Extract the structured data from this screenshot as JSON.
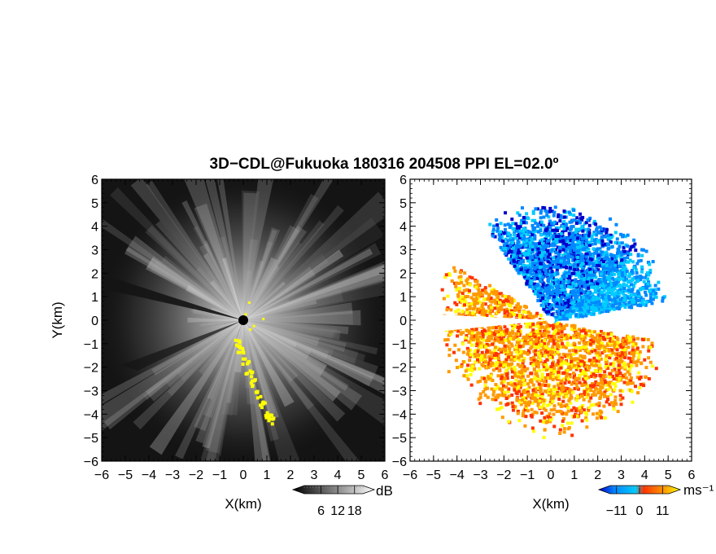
{
  "figure": {
    "title": "3D−CDL@Fukuoka 180316 204508 PPI EL=02.0º"
  },
  "chart_data": [
    {
      "type": "heatmap",
      "panel": "left",
      "description_quantity": "reflectivity-like power (dB)",
      "xlabel": "X(km)",
      "ylabel": "Y(km)",
      "xlim": [
        -6,
        6
      ],
      "ylim": [
        -6,
        6
      ],
      "xticks": [
        "−6",
        "−5",
        "−4",
        "−3",
        "−2",
        "−1",
        "0",
        "1",
        "2",
        "3",
        "4",
        "5",
        "6"
      ],
      "yticks": [
        "6",
        "5",
        "4",
        "3",
        "2",
        "1",
        "0",
        "−1",
        "−2",
        "−3",
        "−4",
        "−5",
        "−6"
      ],
      "background": "#141414",
      "colorbar": {
        "unit": "dB",
        "tick_labels": [
          "6",
          "12",
          "18"
        ],
        "tick_values": [
          6,
          12,
          18
        ],
        "range": [
          0,
          21
        ],
        "colors": [
          "#000000",
          "#ffffff"
        ]
      },
      "highlight_color": "#ffff00",
      "radar_center": [
        0,
        0
      ]
    },
    {
      "type": "heatmap",
      "panel": "right",
      "description_quantity": "Doppler velocity",
      "xlabel": "X(km)",
      "ylabel": "",
      "xlim": [
        -6,
        6
      ],
      "ylim": [
        -6,
        6
      ],
      "xticks": [
        "−6",
        "−5",
        "−4",
        "−3",
        "−2",
        "−1",
        "0",
        "1",
        "2",
        "3",
        "4",
        "5",
        "6"
      ],
      "yticks": [
        "6",
        "5",
        "4",
        "3",
        "2",
        "1",
        "0",
        "−1",
        "−2",
        "−3",
        "−4",
        "−5",
        "−6"
      ],
      "background": "#ffffff",
      "colorbar": {
        "unit": "ms⁻¹",
        "tick_labels": [
          "−11",
          "0",
          "11"
        ],
        "tick_values": [
          -11,
          0,
          11
        ],
        "range": [
          -14,
          14
        ],
        "colors": [
          "#0000cc",
          "#0088ff",
          "#00ccff",
          "#ff3300",
          "#ff9900",
          "#ffff00"
        ]
      },
      "radar_center": [
        0,
        0
      ]
    }
  ]
}
